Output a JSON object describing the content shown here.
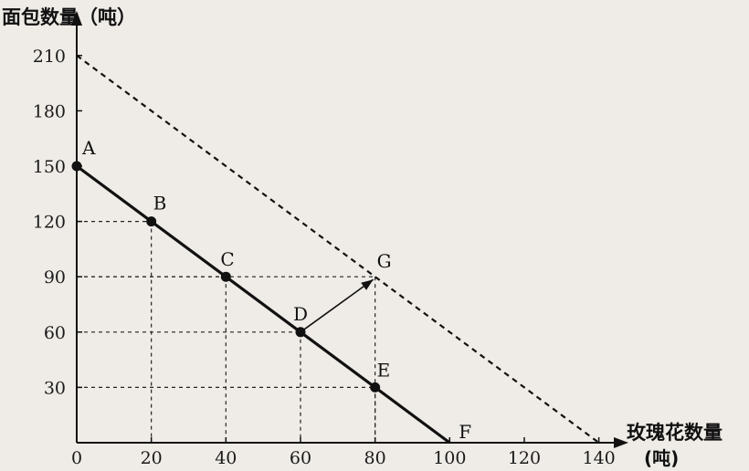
{
  "chart_data": {
    "type": "line",
    "ylabel": "面包数量（吨）",
    "xlabel": "玫瑰花数量",
    "xlabel_unit": "(吨)",
    "xlim": [
      0,
      140
    ],
    "ylim": [
      0,
      210
    ],
    "x_ticks": [
      "0",
      "20",
      "40",
      "60",
      "80",
      "100",
      "120",
      "140"
    ],
    "y_ticks": [
      "30",
      "60",
      "90",
      "120",
      "150",
      "180",
      "210"
    ],
    "grid": false,
    "series": [
      {
        "style": "solid",
        "x": [
          0,
          100
        ],
        "y": [
          150,
          0
        ]
      },
      {
        "style": "dashed",
        "x": [
          0,
          140
        ],
        "y": [
          210,
          0
        ]
      }
    ],
    "points": [
      {
        "label": "A",
        "x": 0,
        "y": 150,
        "marker": true
      },
      {
        "label": "B",
        "x": 20,
        "y": 120,
        "marker": true
      },
      {
        "label": "C",
        "x": 40,
        "y": 90,
        "marker": true
      },
      {
        "label": "D",
        "x": 60,
        "y": 60,
        "marker": true
      },
      {
        "label": "E",
        "x": 80,
        "y": 30,
        "marker": true
      },
      {
        "label": "F",
        "x": 100,
        "y": 0,
        "marker": false
      },
      {
        "label": "G",
        "x": 80,
        "y": 90,
        "marker": false
      }
    ],
    "arrow": {
      "from": "D",
      "to": "G"
    },
    "guides": [
      "B",
      "C",
      "D",
      "E"
    ]
  }
}
